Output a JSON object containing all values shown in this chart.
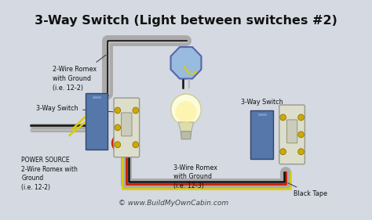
{
  "title": "3-Way Switch (Light between switches #2)",
  "bg_color": "#d4d9e2",
  "wire_colors": {
    "black": "#111111",
    "white": "#bbbbbb",
    "red": "#cc2200",
    "yellow": "#ddcc00",
    "green": "#228833",
    "gray": "#999999"
  },
  "labels": {
    "romex_top": "2-Wire Romex\nwith Ground\n(i.e. 12-2)",
    "switch1": "3-Way Switch",
    "power": "POWER SOURCE\n2-Wire Romex with\nGround\n(i.e. 12-2)",
    "romex_bot": "3-Wire Romex\nwith Ground\n(i.e. 12-3)",
    "switch2": "3-Way Switch",
    "tape": "Black Tape",
    "copyright": "© www.BuildMyOwnCabin.com"
  },
  "title_fontsize": 11.5,
  "label_fontsize": 5.8,
  "copyright_fontsize": 6.5
}
